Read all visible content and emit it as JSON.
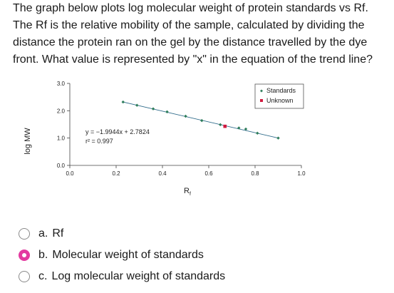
{
  "question": {
    "text": "The graph below plots log molecular weight of protein standards vs Rf. The Rf is the relative mobility of the sample, calculated by dividing the distance the protein ran on the gel by the distance travelled by the dye front. What value is represented by \"x\" in the equation of the trend line?"
  },
  "chart_data": {
    "type": "scatter",
    "title": "",
    "xlabel": "R",
    "xlabel_sub": "f",
    "ylabel": "log MW",
    "xlim": [
      0.0,
      1.0
    ],
    "ylim": [
      0.0,
      3.0
    ],
    "x_ticks": [
      "0.0",
      "0.2",
      "0.4",
      "0.6",
      "0.8",
      "1.0"
    ],
    "y_ticks": [
      "0.0",
      "1.0",
      "2.0",
      "3.0"
    ],
    "grid": false,
    "legend": "top-right",
    "equation": "y = −1.9944x + 2.7824",
    "r_squared": "r² = 0.997",
    "series": [
      {
        "name": "Standards",
        "color": "#2e7d5b",
        "marker": "diamond",
        "x": [
          0.23,
          0.29,
          0.36,
          0.42,
          0.5,
          0.57,
          0.65,
          0.73,
          0.76,
          0.81,
          0.9
        ],
        "y": [
          2.32,
          2.2,
          2.07,
          1.96,
          1.8,
          1.64,
          1.49,
          1.37,
          1.33,
          1.18,
          1.0
        ]
      },
      {
        "name": "Unknown",
        "color": "#d11a3f",
        "marker": "square",
        "x": [
          0.67
        ],
        "y": [
          1.43
        ]
      }
    ],
    "trendline_color": "#2e6b8a"
  },
  "options": [
    {
      "letter": "a.",
      "label": "Rf",
      "selected": false
    },
    {
      "letter": "b.",
      "label": "Molecular weight of standards",
      "selected": true
    },
    {
      "letter": "c.",
      "label": "Log molecular weight of standards",
      "selected": false
    }
  ]
}
